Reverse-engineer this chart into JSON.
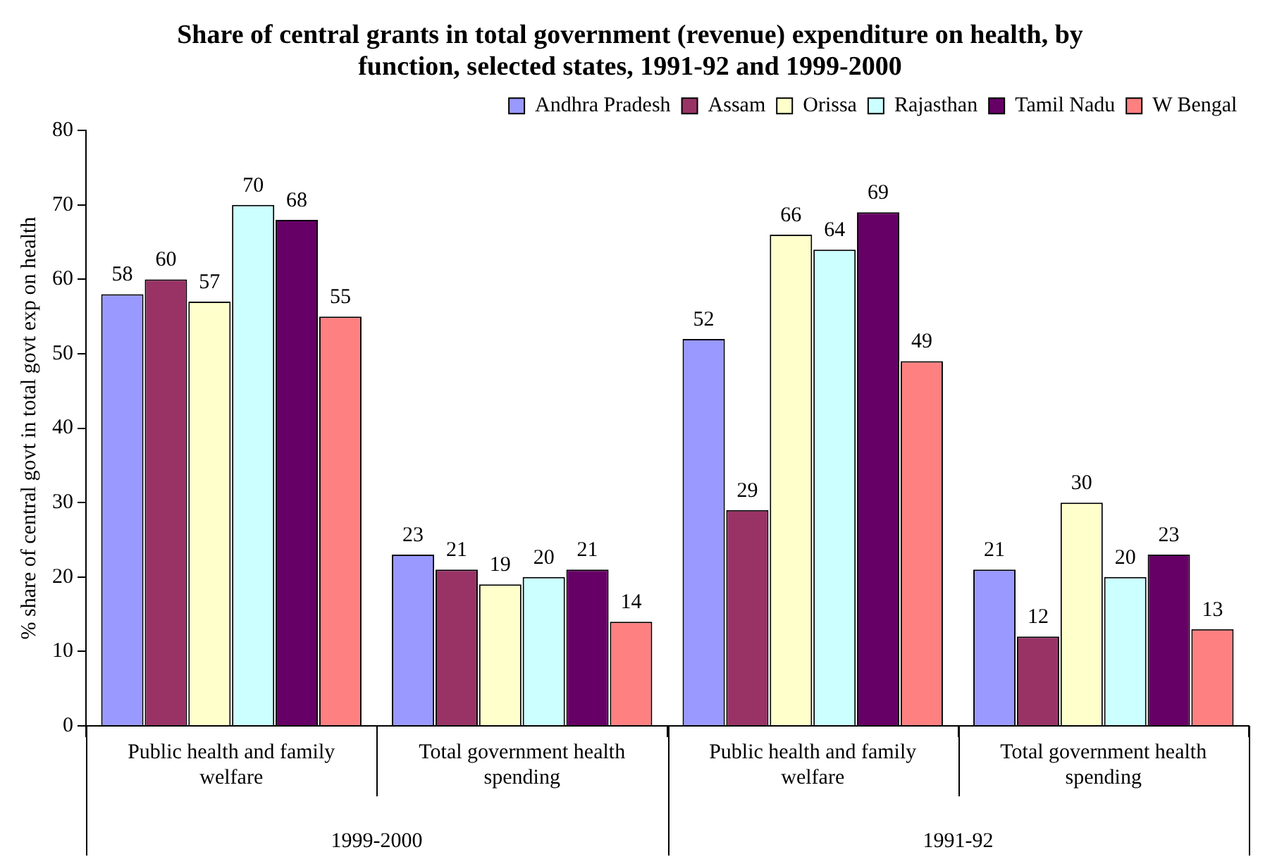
{
  "chart_data": {
    "type": "bar",
    "title": "Share of central grants in total government (revenue) expenditure on health, by function, selected states, 1991-92 and 1999-2000",
    "ylabel": "% share of central govt in total govt exp on health",
    "categories": [
      "Public health and family welfare",
      "Total government health spending",
      "Public health and family welfare",
      "Total government health spending"
    ],
    "series": [
      {
        "name": "Andhra Pradesh",
        "color": "#9999ff",
        "values": [
          58,
          23,
          52,
          21
        ]
      },
      {
        "name": "Assam",
        "color": "#993366",
        "values": [
          60,
          21,
          29,
          12
        ]
      },
      {
        "name": "Orissa",
        "color": "#ffffcc",
        "values": [
          57,
          19,
          66,
          30
        ]
      },
      {
        "name": "Rajasthan",
        "color": "#ccffff",
        "values": [
          70,
          20,
          64,
          20
        ]
      },
      {
        "name": "Tamil Nadu",
        "color": "#660066",
        "values": [
          68,
          21,
          69,
          23
        ]
      },
      {
        "name": "W Bengal",
        "color": "#ff8080",
        "values": [
          55,
          14,
          49,
          13
        ]
      }
    ],
    "annotations": [
      "1999-2000",
      "1991-92"
    ],
    "ylim": [
      0,
      80
    ],
    "yticks": [
      0,
      10,
      20,
      30,
      40,
      50,
      60,
      70,
      80
    ],
    "data_labels": true,
    "legend": "top right",
    "grid": false
  }
}
